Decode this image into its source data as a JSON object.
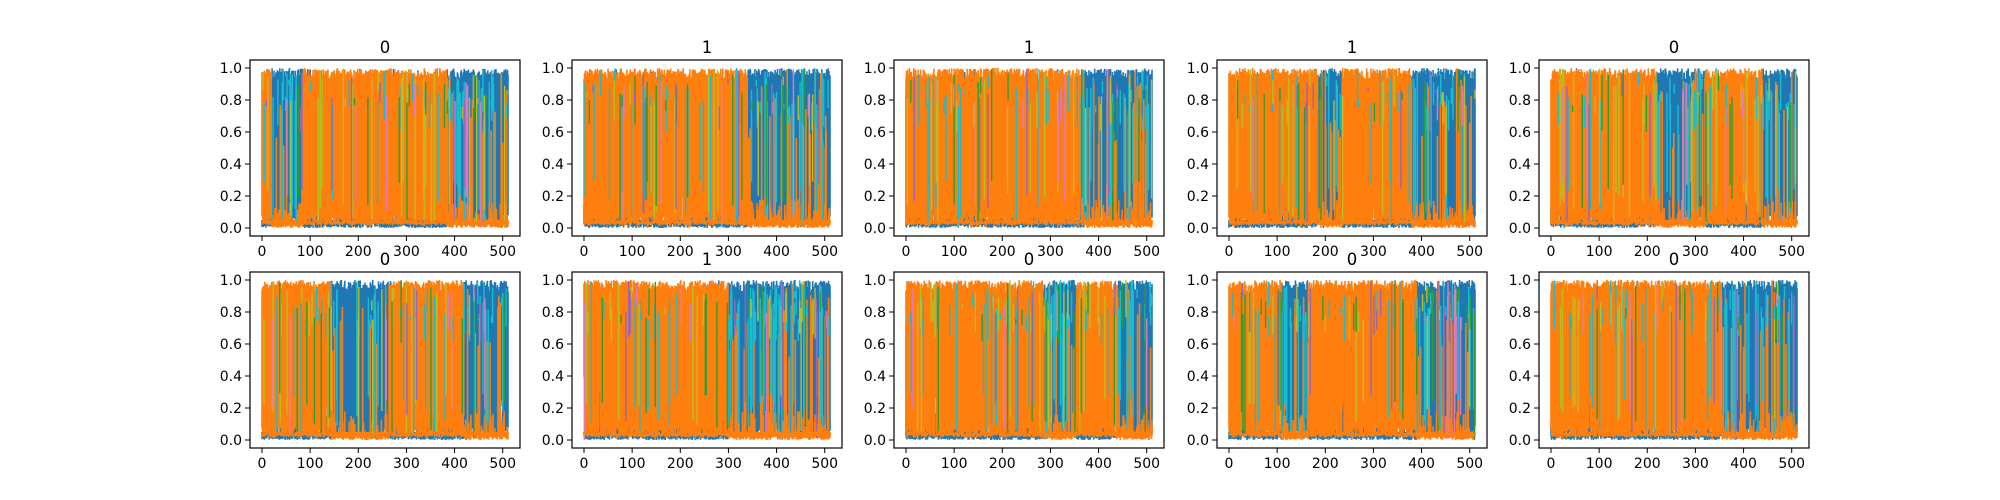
{
  "colors": {
    "blue": "#1f77b4",
    "orange": "#ff7f0e",
    "cyan": "#17becf",
    "olive": "#bcbd22",
    "green": "#2ca02c",
    "pink": "#e377c2",
    "purple": "#9467bd"
  },
  "chart_data": [
    {
      "type": "line",
      "title": "0",
      "xlim": [
        0,
        511
      ],
      "ylim": [
        0.0,
        1.0
      ],
      "xticks": [
        "0",
        "100",
        "200",
        "300",
        "400",
        "500"
      ],
      "yticks": [
        "0.0",
        "0.2",
        "0.4",
        "0.6",
        "0.8",
        "1.0"
      ],
      "dominant_regions": [
        {
          "class": "orange",
          "x": [
            0,
            20
          ]
        },
        {
          "class": "blue",
          "x": [
            20,
            85
          ]
        },
        {
          "class": "orange",
          "x": [
            85,
            385
          ]
        },
        {
          "class": "blue",
          "x": [
            385,
            511
          ]
        }
      ]
    },
    {
      "type": "line",
      "title": "1",
      "xlim": [
        0,
        511
      ],
      "ylim": [
        0.0,
        1.0
      ],
      "xticks": [
        "0",
        "100",
        "200",
        "300",
        "400",
        "500"
      ],
      "yticks": [
        "0.0",
        "0.2",
        "0.4",
        "0.6",
        "0.8",
        "1.0"
      ],
      "dominant_regions": [
        {
          "class": "orange",
          "x": [
            0,
            340
          ]
        },
        {
          "class": "blue",
          "x": [
            340,
            511
          ]
        }
      ]
    },
    {
      "type": "line",
      "title": "1",
      "xlim": [
        0,
        511
      ],
      "ylim": [
        0.0,
        1.0
      ],
      "xticks": [
        "0",
        "100",
        "200",
        "300",
        "400",
        "500"
      ],
      "yticks": [
        "0.0",
        "0.2",
        "0.4",
        "0.6",
        "0.8",
        "1.0"
      ],
      "dominant_regions": [
        {
          "class": "orange",
          "x": [
            0,
            370
          ]
        },
        {
          "class": "blue",
          "x": [
            370,
            511
          ]
        }
      ]
    },
    {
      "type": "line",
      "title": "1",
      "xlim": [
        0,
        511
      ],
      "ylim": [
        0.0,
        1.0
      ],
      "xticks": [
        "0",
        "100",
        "200",
        "300",
        "400",
        "500"
      ],
      "yticks": [
        "0.0",
        "0.2",
        "0.4",
        "0.6",
        "0.8",
        "1.0"
      ],
      "dominant_regions": [
        {
          "class": "orange",
          "x": [
            0,
            185
          ]
        },
        {
          "class": "blue",
          "x": [
            185,
            235
          ]
        },
        {
          "class": "orange",
          "x": [
            235,
            380
          ]
        },
        {
          "class": "blue",
          "x": [
            380,
            511
          ]
        }
      ]
    },
    {
      "type": "line",
      "title": "0",
      "xlim": [
        0,
        511
      ],
      "ylim": [
        0.0,
        1.0
      ],
      "xticks": [
        "0",
        "100",
        "200",
        "300",
        "400",
        "500"
      ],
      "yticks": [
        "0.0",
        "0.2",
        "0.4",
        "0.6",
        "0.8",
        "1.0"
      ],
      "dominant_regions": [
        {
          "class": "orange",
          "x": [
            0,
            215
          ]
        },
        {
          "class": "blue",
          "x": [
            215,
            320
          ]
        },
        {
          "class": "orange",
          "x": [
            320,
            440
          ]
        },
        {
          "class": "blue",
          "x": [
            440,
            511
          ]
        }
      ]
    },
    {
      "type": "line",
      "title": "0",
      "xlim": [
        0,
        511
      ],
      "ylim": [
        0.0,
        1.0
      ],
      "xticks": [
        "0",
        "100",
        "200",
        "300",
        "400",
        "500"
      ],
      "yticks": [
        "0.0",
        "0.2",
        "0.4",
        "0.6",
        "0.8",
        "1.0"
      ],
      "dominant_regions": [
        {
          "class": "orange",
          "x": [
            0,
            145
          ]
        },
        {
          "class": "blue",
          "x": [
            145,
            265
          ]
        },
        {
          "class": "orange",
          "x": [
            265,
            420
          ]
        },
        {
          "class": "blue",
          "x": [
            420,
            511
          ]
        }
      ]
    },
    {
      "type": "line",
      "title": "1",
      "xlim": [
        0,
        511
      ],
      "ylim": [
        0.0,
        1.0
      ],
      "xticks": [
        "0",
        "100",
        "200",
        "300",
        "400",
        "500"
      ],
      "yticks": [
        "0.0",
        "0.2",
        "0.4",
        "0.6",
        "0.8",
        "1.0"
      ],
      "dominant_regions": [
        {
          "class": "orange",
          "x": [
            0,
            300
          ]
        },
        {
          "class": "blue",
          "x": [
            300,
            511
          ]
        }
      ]
    },
    {
      "type": "line",
      "title": "0",
      "xlim": [
        0,
        511
      ],
      "ylim": [
        0.0,
        1.0
      ],
      "xticks": [
        "0",
        "100",
        "200",
        "300",
        "400",
        "500"
      ],
      "yticks": [
        "0.0",
        "0.2",
        "0.4",
        "0.6",
        "0.8",
        "1.0"
      ],
      "dominant_regions": [
        {
          "class": "orange",
          "x": [
            0,
            285
          ]
        },
        {
          "class": "blue",
          "x": [
            285,
            355
          ]
        },
        {
          "class": "orange",
          "x": [
            355,
            440
          ]
        },
        {
          "class": "blue",
          "x": [
            440,
            511
          ]
        }
      ]
    },
    {
      "type": "line",
      "title": "0",
      "xlim": [
        0,
        511
      ],
      "ylim": [
        0.0,
        1.0
      ],
      "xticks": [
        "0",
        "100",
        "200",
        "300",
        "400",
        "500"
      ],
      "yticks": [
        "0.0",
        "0.2",
        "0.4",
        "0.6",
        "0.8",
        "1.0"
      ],
      "dominant_regions": [
        {
          "class": "orange",
          "x": [
            0,
            110
          ]
        },
        {
          "class": "blue",
          "x": [
            110,
            165
          ]
        },
        {
          "class": "orange",
          "x": [
            165,
            390
          ]
        },
        {
          "class": "blue",
          "x": [
            390,
            511
          ]
        }
      ]
    },
    {
      "type": "line",
      "title": "0",
      "xlim": [
        0,
        511
      ],
      "ylim": [
        0.0,
        1.0
      ],
      "xticks": [
        "0",
        "100",
        "200",
        "300",
        "400",
        "500"
      ],
      "yticks": [
        "0.0",
        "0.2",
        "0.4",
        "0.6",
        "0.8",
        "1.0"
      ],
      "dominant_regions": [
        {
          "class": "orange",
          "x": [
            0,
            355
          ]
        },
        {
          "class": "blue",
          "x": [
            355,
            511
          ]
        }
      ]
    }
  ]
}
